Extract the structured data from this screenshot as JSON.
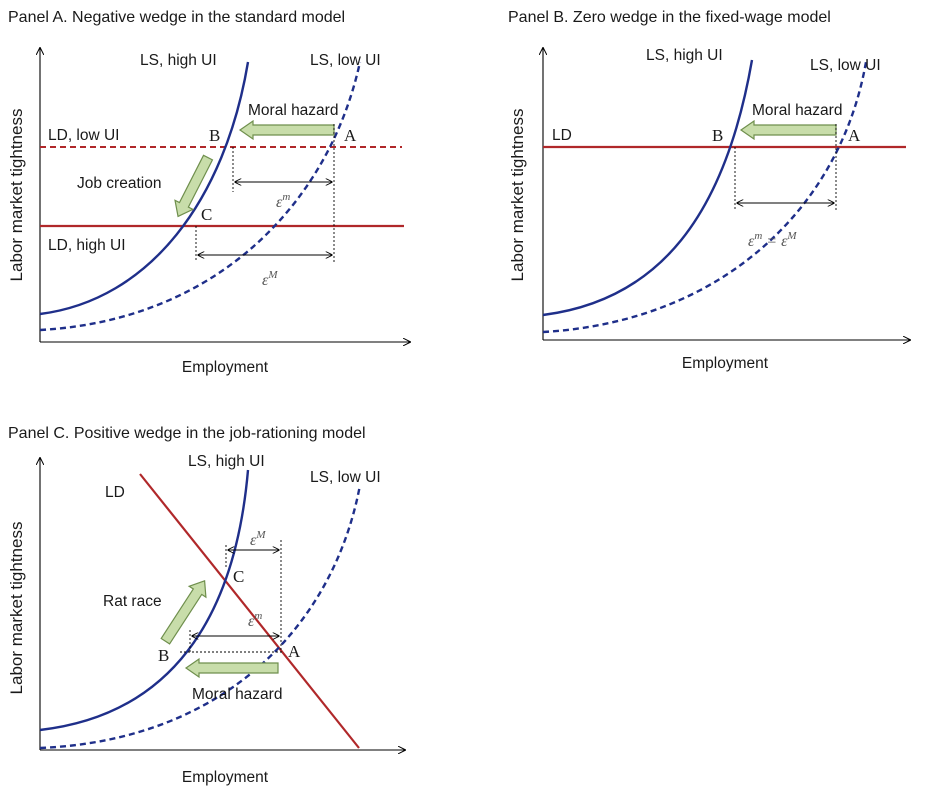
{
  "panel_a": {
    "title": "Panel A. Negative wedge in the standard model",
    "xlabel": "Employment",
    "ylabel": "Labor market tightness",
    "ls_high": "LS, high UI",
    "ls_low": "LS, low UI",
    "ld_low": "LD, low UI",
    "ld_high": "LD, high UI",
    "moral_hazard": "Moral hazard",
    "job_creation": "Job creation",
    "point_a": "A",
    "point_b": "B",
    "point_c": "C",
    "eps_m": "ε",
    "eps_m_sup": "m",
    "eps_M": "ε",
    "eps_M_sup": "M"
  },
  "panel_b": {
    "title": "Panel B. Zero wedge in the fixed-wage model",
    "xlabel": "Employment",
    "ylabel": "Labor market tightness",
    "ls_high": "LS,  high UI",
    "ls_low": "LS, low UI",
    "ld": "LD",
    "moral_hazard": "Moral hazard",
    "point_a": "A",
    "point_b": "B",
    "eps_m": "ε",
    "eps_m_sup": "m",
    "equals": " = ",
    "eps_M": "ε",
    "eps_M_sup": "M"
  },
  "panel_c": {
    "title": "Panel C. Positive wedge in the job-rationing model",
    "xlabel": "Employment",
    "ylabel": "Labor market tightness",
    "ls_high": "LS, high UI",
    "ls_low": "LS, low UI",
    "ld": "LD",
    "rat_race": "Rat race",
    "moral_hazard": "Moral hazard",
    "point_a": "A",
    "point_b": "B",
    "point_c": "C",
    "eps_M": "ε",
    "eps_M_sup": "M",
    "eps_m": "ε",
    "eps_m_sup": "m"
  },
  "colors": {
    "labor_supply": "#1f2f8a",
    "labor_demand": "#b0282a",
    "arrow_fill": "#c8ddaa",
    "arrow_stroke": "#6f8f4d"
  }
}
